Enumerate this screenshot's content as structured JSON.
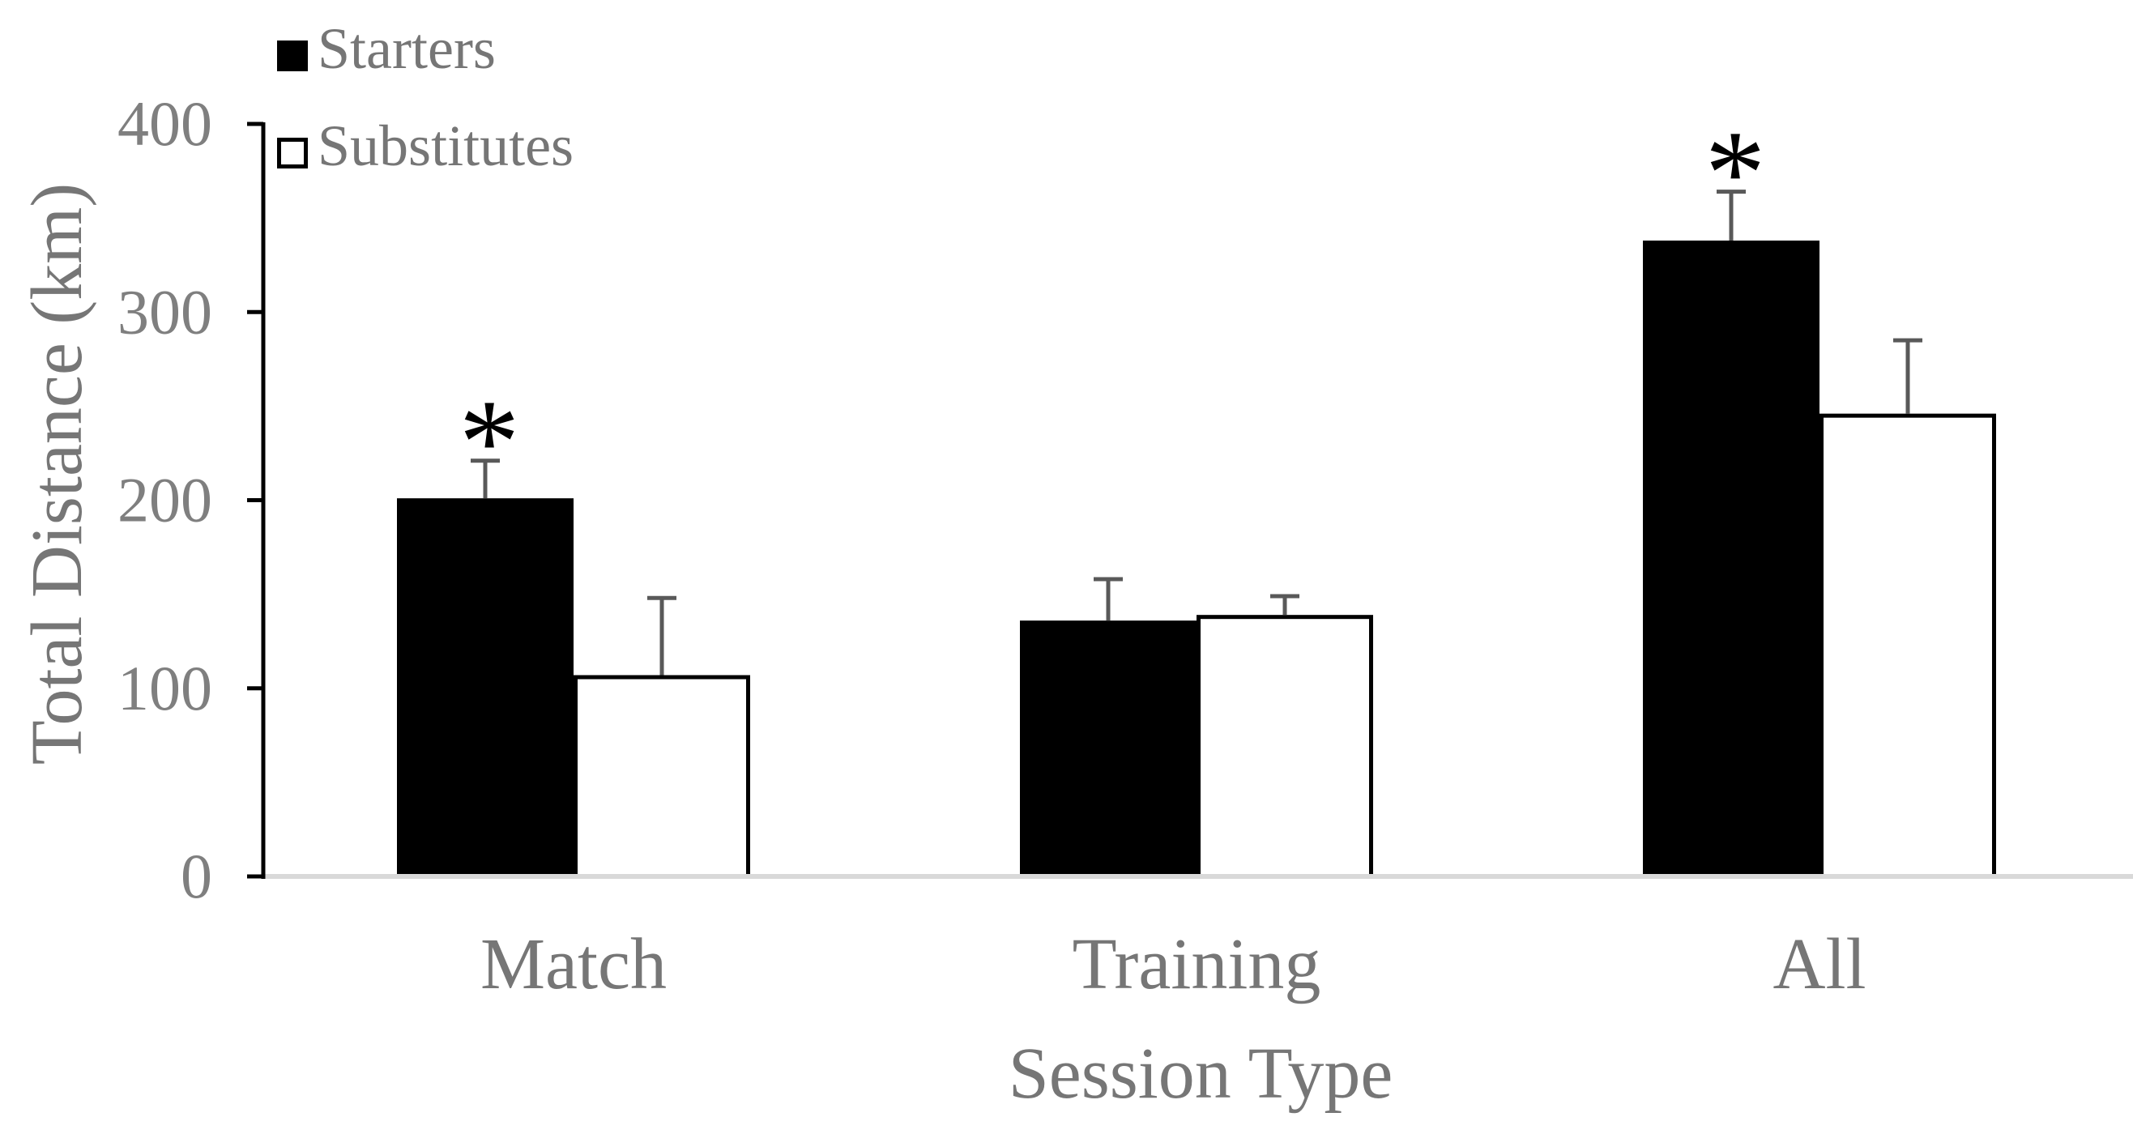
{
  "chart_data": {
    "type": "bar",
    "categories": [
      "Match",
      "Training",
      "All"
    ],
    "series": [
      {
        "name": "Starters",
        "values": [
          201,
          136,
          338
        ],
        "errors": [
          20,
          22,
          26
        ],
        "color": "#000000"
      },
      {
        "name": "Substitutes",
        "values": [
          107,
          139,
          246
        ],
        "errors": [
          41,
          10,
          39
        ],
        "color": "#ffffff"
      }
    ],
    "significance": [
      {
        "category": "Match",
        "label": "*"
      },
      {
        "category": "All",
        "label": "*"
      }
    ],
    "xlabel": "Session Type",
    "ylabel": "Total Distance (km)",
    "ylim": [
      0,
      400
    ],
    "yticks": [
      0,
      100,
      200,
      300,
      400
    ],
    "grid": false,
    "legend_position": "top-left"
  }
}
